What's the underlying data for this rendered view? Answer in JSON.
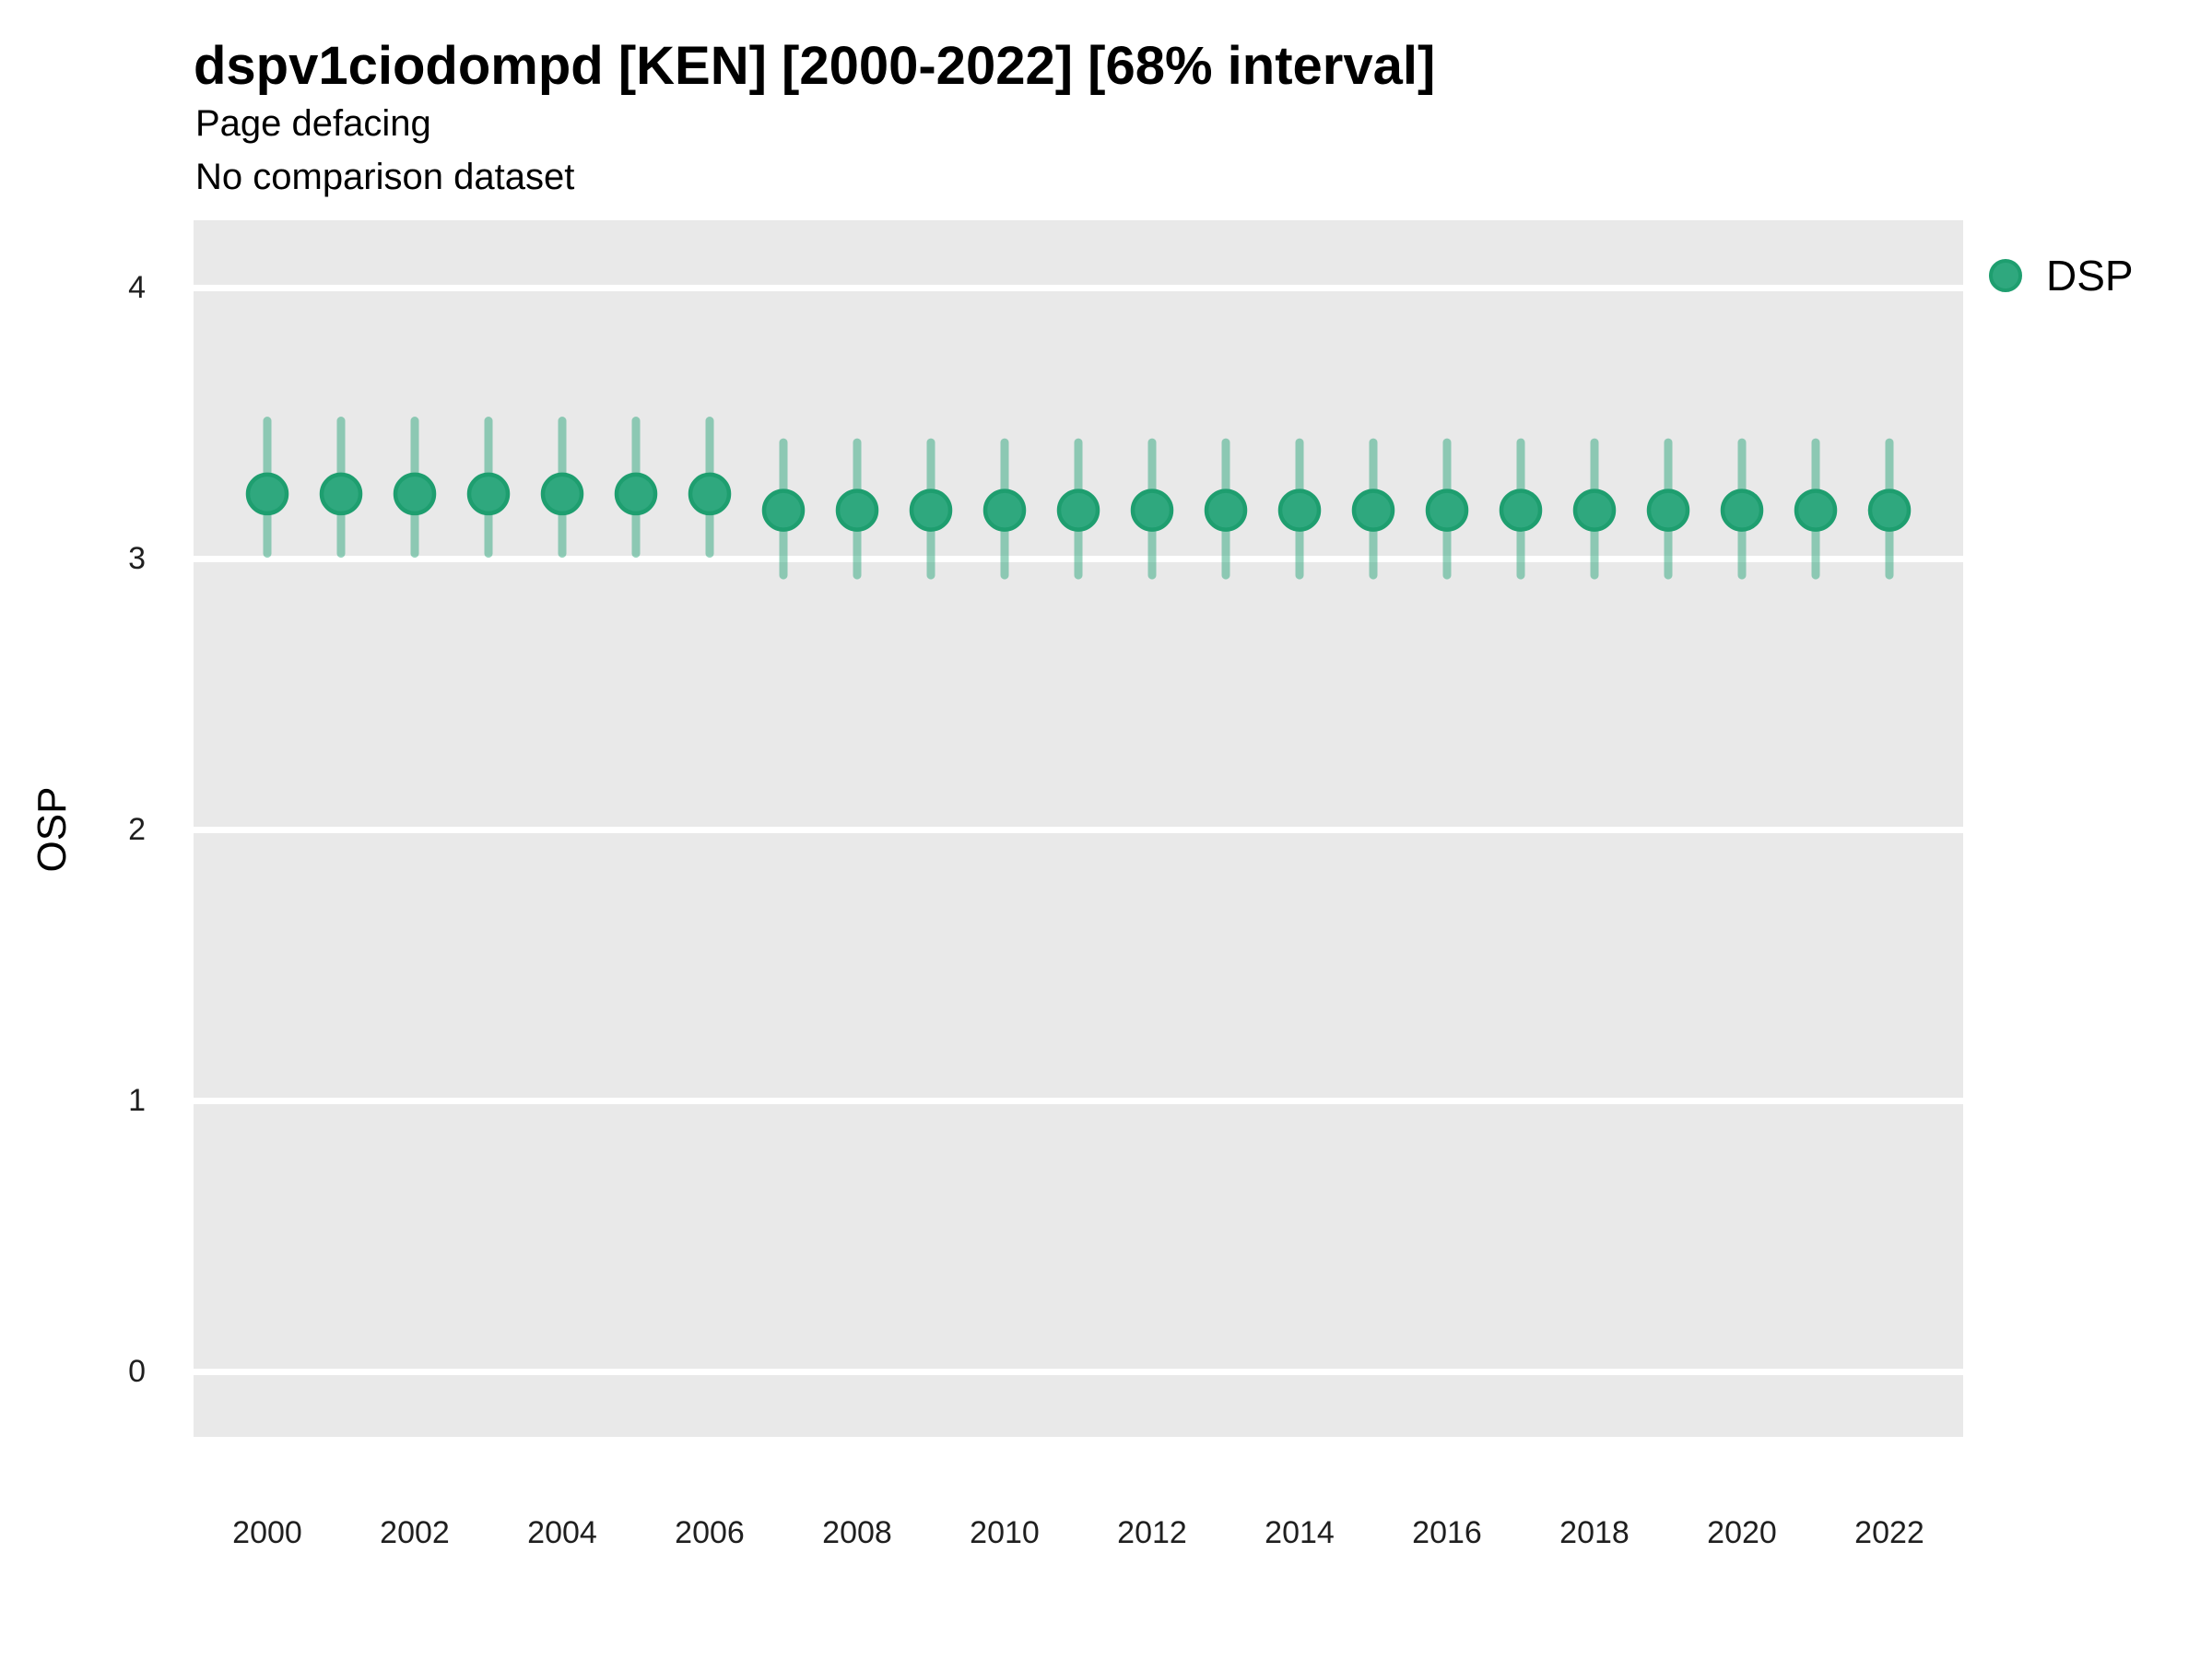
{
  "title": "dspv1ciodompd [KEN] [2000-2022] [68% interval]",
  "subtitle": "Page defacing",
  "note": "No comparison dataset",
  "y_axis_title": "OSP",
  "legend": {
    "position": "top-right",
    "items": [
      {
        "label": "DSP",
        "marker": "circle-icon",
        "fill": "#2FA87E",
        "stroke": "#1E9E6F"
      }
    ]
  },
  "colors": {
    "panel_background": "#E9E9E9",
    "gridline": "#FFFFFF",
    "point_fill": "#2FA87E",
    "point_stroke": "#1E9E6F",
    "interval_bar": "rgba(47,168,126,0.5)",
    "text": "#000000",
    "tick_text": "#1F1F1F"
  },
  "chart_data": {
    "type": "scatter",
    "mark": "pointrange",
    "title": "dspv1ciodompd [KEN] [2000-2022] [68% interval]",
    "subtitle": "Page defacing",
    "note": "No comparison dataset",
    "xlabel": "",
    "ylabel": "OSP",
    "interval_level": "68%",
    "grid": "horizontal-major-only",
    "legend_position": "top-right",
    "x": [
      2000,
      2001,
      2002,
      2003,
      2004,
      2005,
      2006,
      2007,
      2008,
      2009,
      2010,
      2011,
      2012,
      2013,
      2014,
      2015,
      2016,
      2017,
      2018,
      2019,
      2020,
      2021,
      2022
    ],
    "series": [
      {
        "name": "DSP",
        "mid": [
          3.24,
          3.24,
          3.24,
          3.24,
          3.24,
          3.24,
          3.24,
          3.18,
          3.18,
          3.18,
          3.18,
          3.18,
          3.18,
          3.18,
          3.18,
          3.18,
          3.18,
          3.18,
          3.18,
          3.18,
          3.18,
          3.18,
          3.18
        ],
        "lo": [
          3.02,
          3.02,
          3.02,
          3.02,
          3.02,
          3.02,
          3.02,
          2.94,
          2.94,
          2.94,
          2.94,
          2.94,
          2.94,
          2.94,
          2.94,
          2.94,
          2.94,
          2.94,
          2.94,
          2.94,
          2.94,
          2.94,
          2.94
        ],
        "hi": [
          3.51,
          3.51,
          3.51,
          3.51,
          3.51,
          3.51,
          3.51,
          3.43,
          3.43,
          3.43,
          3.43,
          3.43,
          3.43,
          3.43,
          3.43,
          3.43,
          3.43,
          3.43,
          3.43,
          3.43,
          3.43,
          3.43,
          3.43
        ]
      }
    ],
    "ylim": [
      -0.24,
      4.25
    ],
    "yticks": [
      0,
      1,
      2,
      3,
      4
    ],
    "xticks": [
      2000,
      2002,
      2004,
      2006,
      2008,
      2010,
      2012,
      2014,
      2016,
      2018,
      2020,
      2022
    ]
  }
}
